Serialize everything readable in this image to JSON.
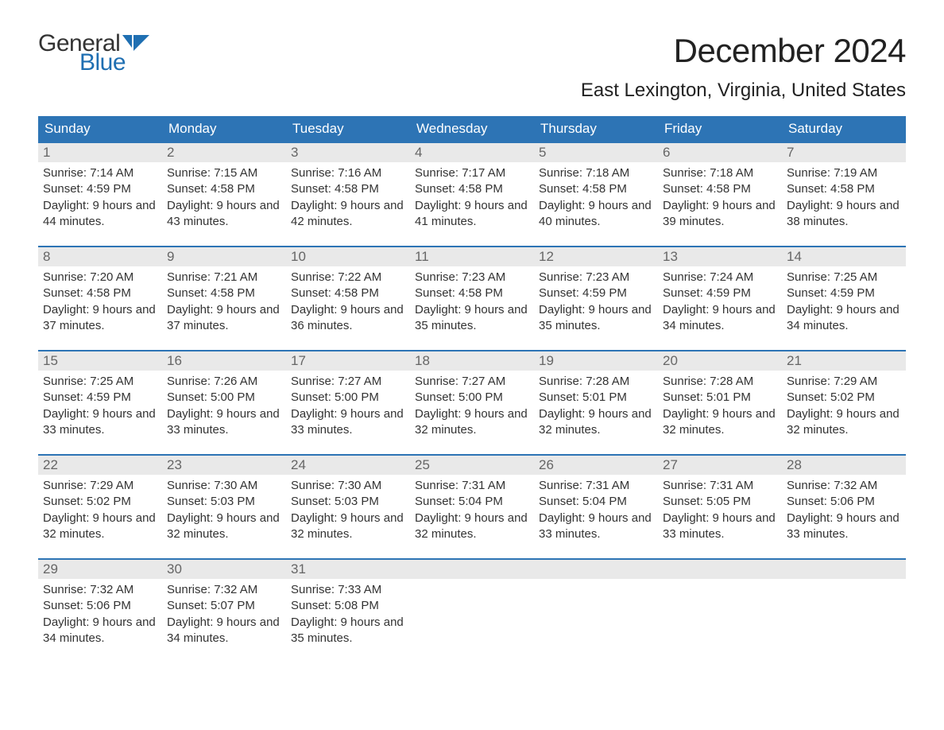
{
  "logo": {
    "text_general": "General",
    "text_blue": "Blue",
    "logo_color": "#1f6fb2"
  },
  "title": "December 2024",
  "location": "East Lexington, Virginia, United States",
  "colors": {
    "header_bg": "#2d74b5",
    "header_text": "#ffffff",
    "week_border": "#2d74b5",
    "daynum_bg": "#e9e9e9",
    "daynum_text": "#666666",
    "body_text": "#333333",
    "background": "#ffffff"
  },
  "fonts": {
    "month_title_pt": 42,
    "location_pt": 24,
    "day_header_pt": 17,
    "daynum_pt": 17,
    "details_pt": 15
  },
  "day_names": [
    "Sunday",
    "Monday",
    "Tuesday",
    "Wednesday",
    "Thursday",
    "Friday",
    "Saturday"
  ],
  "weeks": [
    [
      {
        "n": "1",
        "sr": "7:14 AM",
        "ss": "4:59 PM",
        "dl": "9 hours and 44 minutes."
      },
      {
        "n": "2",
        "sr": "7:15 AM",
        "ss": "4:58 PM",
        "dl": "9 hours and 43 minutes."
      },
      {
        "n": "3",
        "sr": "7:16 AM",
        "ss": "4:58 PM",
        "dl": "9 hours and 42 minutes."
      },
      {
        "n": "4",
        "sr": "7:17 AM",
        "ss": "4:58 PM",
        "dl": "9 hours and 41 minutes."
      },
      {
        "n": "5",
        "sr": "7:18 AM",
        "ss": "4:58 PM",
        "dl": "9 hours and 40 minutes."
      },
      {
        "n": "6",
        "sr": "7:18 AM",
        "ss": "4:58 PM",
        "dl": "9 hours and 39 minutes."
      },
      {
        "n": "7",
        "sr": "7:19 AM",
        "ss": "4:58 PM",
        "dl": "9 hours and 38 minutes."
      }
    ],
    [
      {
        "n": "8",
        "sr": "7:20 AM",
        "ss": "4:58 PM",
        "dl": "9 hours and 37 minutes."
      },
      {
        "n": "9",
        "sr": "7:21 AM",
        "ss": "4:58 PM",
        "dl": "9 hours and 37 minutes."
      },
      {
        "n": "10",
        "sr": "7:22 AM",
        "ss": "4:58 PM",
        "dl": "9 hours and 36 minutes."
      },
      {
        "n": "11",
        "sr": "7:23 AM",
        "ss": "4:58 PM",
        "dl": "9 hours and 35 minutes."
      },
      {
        "n": "12",
        "sr": "7:23 AM",
        "ss": "4:59 PM",
        "dl": "9 hours and 35 minutes."
      },
      {
        "n": "13",
        "sr": "7:24 AM",
        "ss": "4:59 PM",
        "dl": "9 hours and 34 minutes."
      },
      {
        "n": "14",
        "sr": "7:25 AM",
        "ss": "4:59 PM",
        "dl": "9 hours and 34 minutes."
      }
    ],
    [
      {
        "n": "15",
        "sr": "7:25 AM",
        "ss": "4:59 PM",
        "dl": "9 hours and 33 minutes."
      },
      {
        "n": "16",
        "sr": "7:26 AM",
        "ss": "5:00 PM",
        "dl": "9 hours and 33 minutes."
      },
      {
        "n": "17",
        "sr": "7:27 AM",
        "ss": "5:00 PM",
        "dl": "9 hours and 33 minutes."
      },
      {
        "n": "18",
        "sr": "7:27 AM",
        "ss": "5:00 PM",
        "dl": "9 hours and 32 minutes."
      },
      {
        "n": "19",
        "sr": "7:28 AM",
        "ss": "5:01 PM",
        "dl": "9 hours and 32 minutes."
      },
      {
        "n": "20",
        "sr": "7:28 AM",
        "ss": "5:01 PM",
        "dl": "9 hours and 32 minutes."
      },
      {
        "n": "21",
        "sr": "7:29 AM",
        "ss": "5:02 PM",
        "dl": "9 hours and 32 minutes."
      }
    ],
    [
      {
        "n": "22",
        "sr": "7:29 AM",
        "ss": "5:02 PM",
        "dl": "9 hours and 32 minutes."
      },
      {
        "n": "23",
        "sr": "7:30 AM",
        "ss": "5:03 PM",
        "dl": "9 hours and 32 minutes."
      },
      {
        "n": "24",
        "sr": "7:30 AM",
        "ss": "5:03 PM",
        "dl": "9 hours and 32 minutes."
      },
      {
        "n": "25",
        "sr": "7:31 AM",
        "ss": "5:04 PM",
        "dl": "9 hours and 32 minutes."
      },
      {
        "n": "26",
        "sr": "7:31 AM",
        "ss": "5:04 PM",
        "dl": "9 hours and 33 minutes."
      },
      {
        "n": "27",
        "sr": "7:31 AM",
        "ss": "5:05 PM",
        "dl": "9 hours and 33 minutes."
      },
      {
        "n": "28",
        "sr": "7:32 AM",
        "ss": "5:06 PM",
        "dl": "9 hours and 33 minutes."
      }
    ],
    [
      {
        "n": "29",
        "sr": "7:32 AM",
        "ss": "5:06 PM",
        "dl": "9 hours and 34 minutes."
      },
      {
        "n": "30",
        "sr": "7:32 AM",
        "ss": "5:07 PM",
        "dl": "9 hours and 34 minutes."
      },
      {
        "n": "31",
        "sr": "7:33 AM",
        "ss": "5:08 PM",
        "dl": "9 hours and 35 minutes."
      },
      null,
      null,
      null,
      null
    ]
  ],
  "labels": {
    "sunrise": "Sunrise:",
    "sunset": "Sunset:",
    "daylight": "Daylight:"
  }
}
